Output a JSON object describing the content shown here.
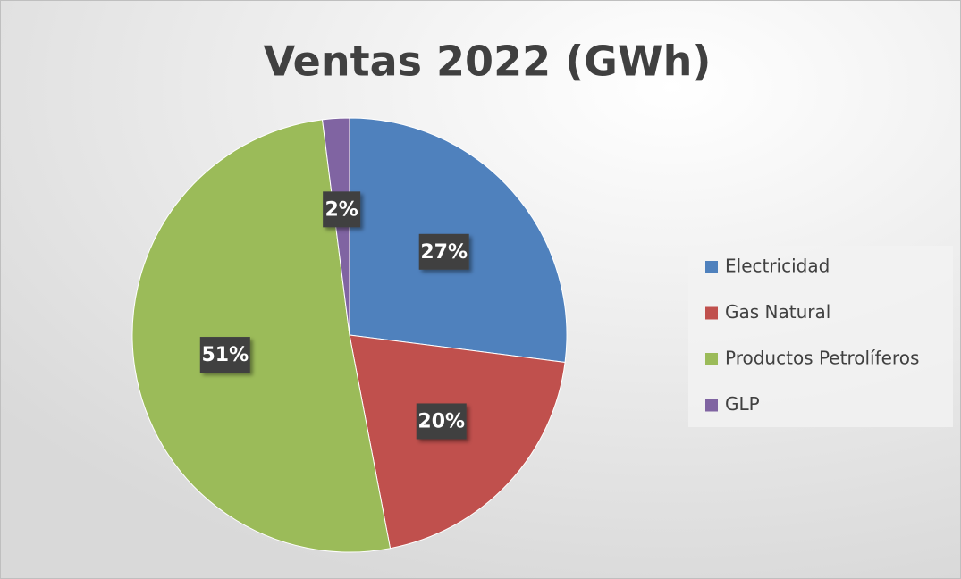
{
  "chart_data": {
    "type": "pie",
    "title": "Ventas 2022 (GWh)",
    "categories": [
      "Electricidad",
      "Gas Natural",
      "Productos Petrolíferos",
      "GLP"
    ],
    "values": [
      27,
      20,
      51,
      2
    ],
    "value_labels": [
      "27%",
      "20%",
      "51%",
      "2%"
    ],
    "colors": [
      "#4f81bd",
      "#c0504d",
      "#9bbb59",
      "#8064a2"
    ],
    "legend": "right"
  }
}
